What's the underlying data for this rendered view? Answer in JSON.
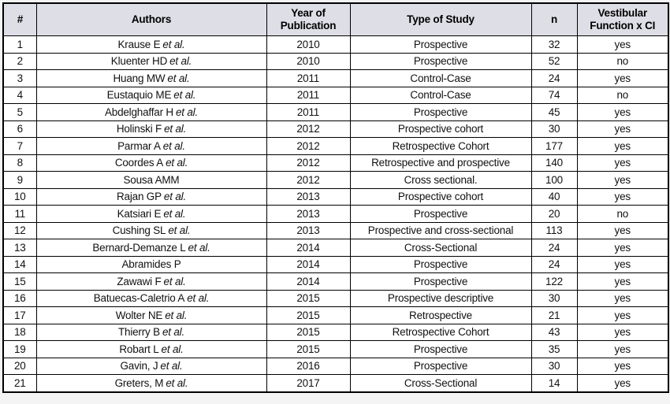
{
  "colors": {
    "header_bg": "#dedee6",
    "grid_border": "#000000",
    "row_bg": "#ffffff",
    "text": "#121212"
  },
  "table": {
    "columns": [
      {
        "key": "index",
        "label": "#"
      },
      {
        "key": "authors",
        "label": "Authors"
      },
      {
        "key": "year",
        "label": "Year of Publication"
      },
      {
        "key": "type",
        "label": "Type of Study"
      },
      {
        "key": "n",
        "label": "n"
      },
      {
        "key": "vestibular",
        "label": "Vestibular Function x CI"
      }
    ],
    "rows": [
      {
        "index": "1",
        "author": "Krause E",
        "etal": "et al.",
        "year": "2010",
        "type": "Prospective",
        "n": "32",
        "vestibular": "yes"
      },
      {
        "index": "2",
        "author": "Kluenter HD",
        "etal": "et al.",
        "year": "2010",
        "type": "Prospective",
        "n": "52",
        "vestibular": "no"
      },
      {
        "index": "3",
        "author": "Huang MW",
        "etal": "et al.",
        "year": "2011",
        "type": "Control-Case",
        "n": "24",
        "vestibular": "yes"
      },
      {
        "index": "4",
        "author": "Eustaquio ME",
        "etal": "et al.",
        "year": "2011",
        "type": "Control-Case",
        "n": "74",
        "vestibular": "no"
      },
      {
        "index": "5",
        "author": "Abdelghaffar H",
        "etal": "et al.",
        "year": "2011",
        "type": "Prospective",
        "n": "45",
        "vestibular": "yes"
      },
      {
        "index": "6",
        "author": "Holinski F",
        "etal": "et al.",
        "year": "2012",
        "type": "Prospective cohort",
        "n": "30",
        "vestibular": "yes"
      },
      {
        "index": "7",
        "author": "Parmar A",
        "etal": "et al.",
        "year": "2012",
        "type": "Retrospective Cohort",
        "n": "177",
        "vestibular": "yes"
      },
      {
        "index": "8",
        "author": "Coordes A",
        "etal": "et al.",
        "year": "2012",
        "type": "Retrospective and prospective",
        "n": "140",
        "vestibular": "yes"
      },
      {
        "index": "9",
        "author": "Sousa AMM",
        "etal": "",
        "year": "2012",
        "type": "Cross sectional.",
        "n": "100",
        "vestibular": "yes"
      },
      {
        "index": "10",
        "author": "Rajan GP",
        "etal": "et al.",
        "year": "2013",
        "type": "Prospective cohort",
        "n": "40",
        "vestibular": "yes"
      },
      {
        "index": "11",
        "author": "Katsiari E",
        "etal": "et al.",
        "year": "2013",
        "type": "Prospective",
        "n": "20",
        "vestibular": "no"
      },
      {
        "index": "12",
        "author": "Cushing SL",
        "etal": "et al.",
        "year": "2013",
        "type": "Prospective and cross-sectional",
        "n": "113",
        "vestibular": "yes"
      },
      {
        "index": "13",
        "author": "Bernard-Demanze L",
        "etal": "et al.",
        "year": "2014",
        "type": "Cross-Sectional",
        "n": "24",
        "vestibular": "yes"
      },
      {
        "index": "14",
        "author": "Abramides P",
        "etal": "",
        "year": "2014",
        "type": "Prospective",
        "n": "24",
        "vestibular": "yes"
      },
      {
        "index": "15",
        "author": "Zawawi F",
        "etal": "et al.",
        "year": "2014",
        "type": "Prospective",
        "n": "122",
        "vestibular": "yes"
      },
      {
        "index": "16",
        "author": "Batuecas-Caletrio A",
        "etal": "et al.",
        "year": "2015",
        "type": "Prospective descriptive",
        "n": "30",
        "vestibular": "yes"
      },
      {
        "index": "17",
        "author": "Wolter NE",
        "etal": "et al.",
        "year": "2015",
        "type": "Retrospective",
        "n": "21",
        "vestibular": "yes"
      },
      {
        "index": "18",
        "author": "Thierry B",
        "etal": "et al.",
        "year": "2015",
        "type": "Retrospective Cohort",
        "n": "43",
        "vestibular": "yes"
      },
      {
        "index": "19",
        "author": "Robart L",
        "etal": "et al.",
        "year": "2015",
        "type": "Prospective",
        "n": "35",
        "vestibular": "yes"
      },
      {
        "index": "20",
        "author": "Gavin, J",
        "etal": "et al.",
        "year": "2016",
        "type": "Prospective",
        "n": "30",
        "vestibular": "yes"
      },
      {
        "index": "21",
        "author": "Greters, M",
        "etal": "et al.",
        "year": "2017",
        "type": "Cross-Sectional",
        "n": "14",
        "vestibular": "yes"
      }
    ]
  }
}
